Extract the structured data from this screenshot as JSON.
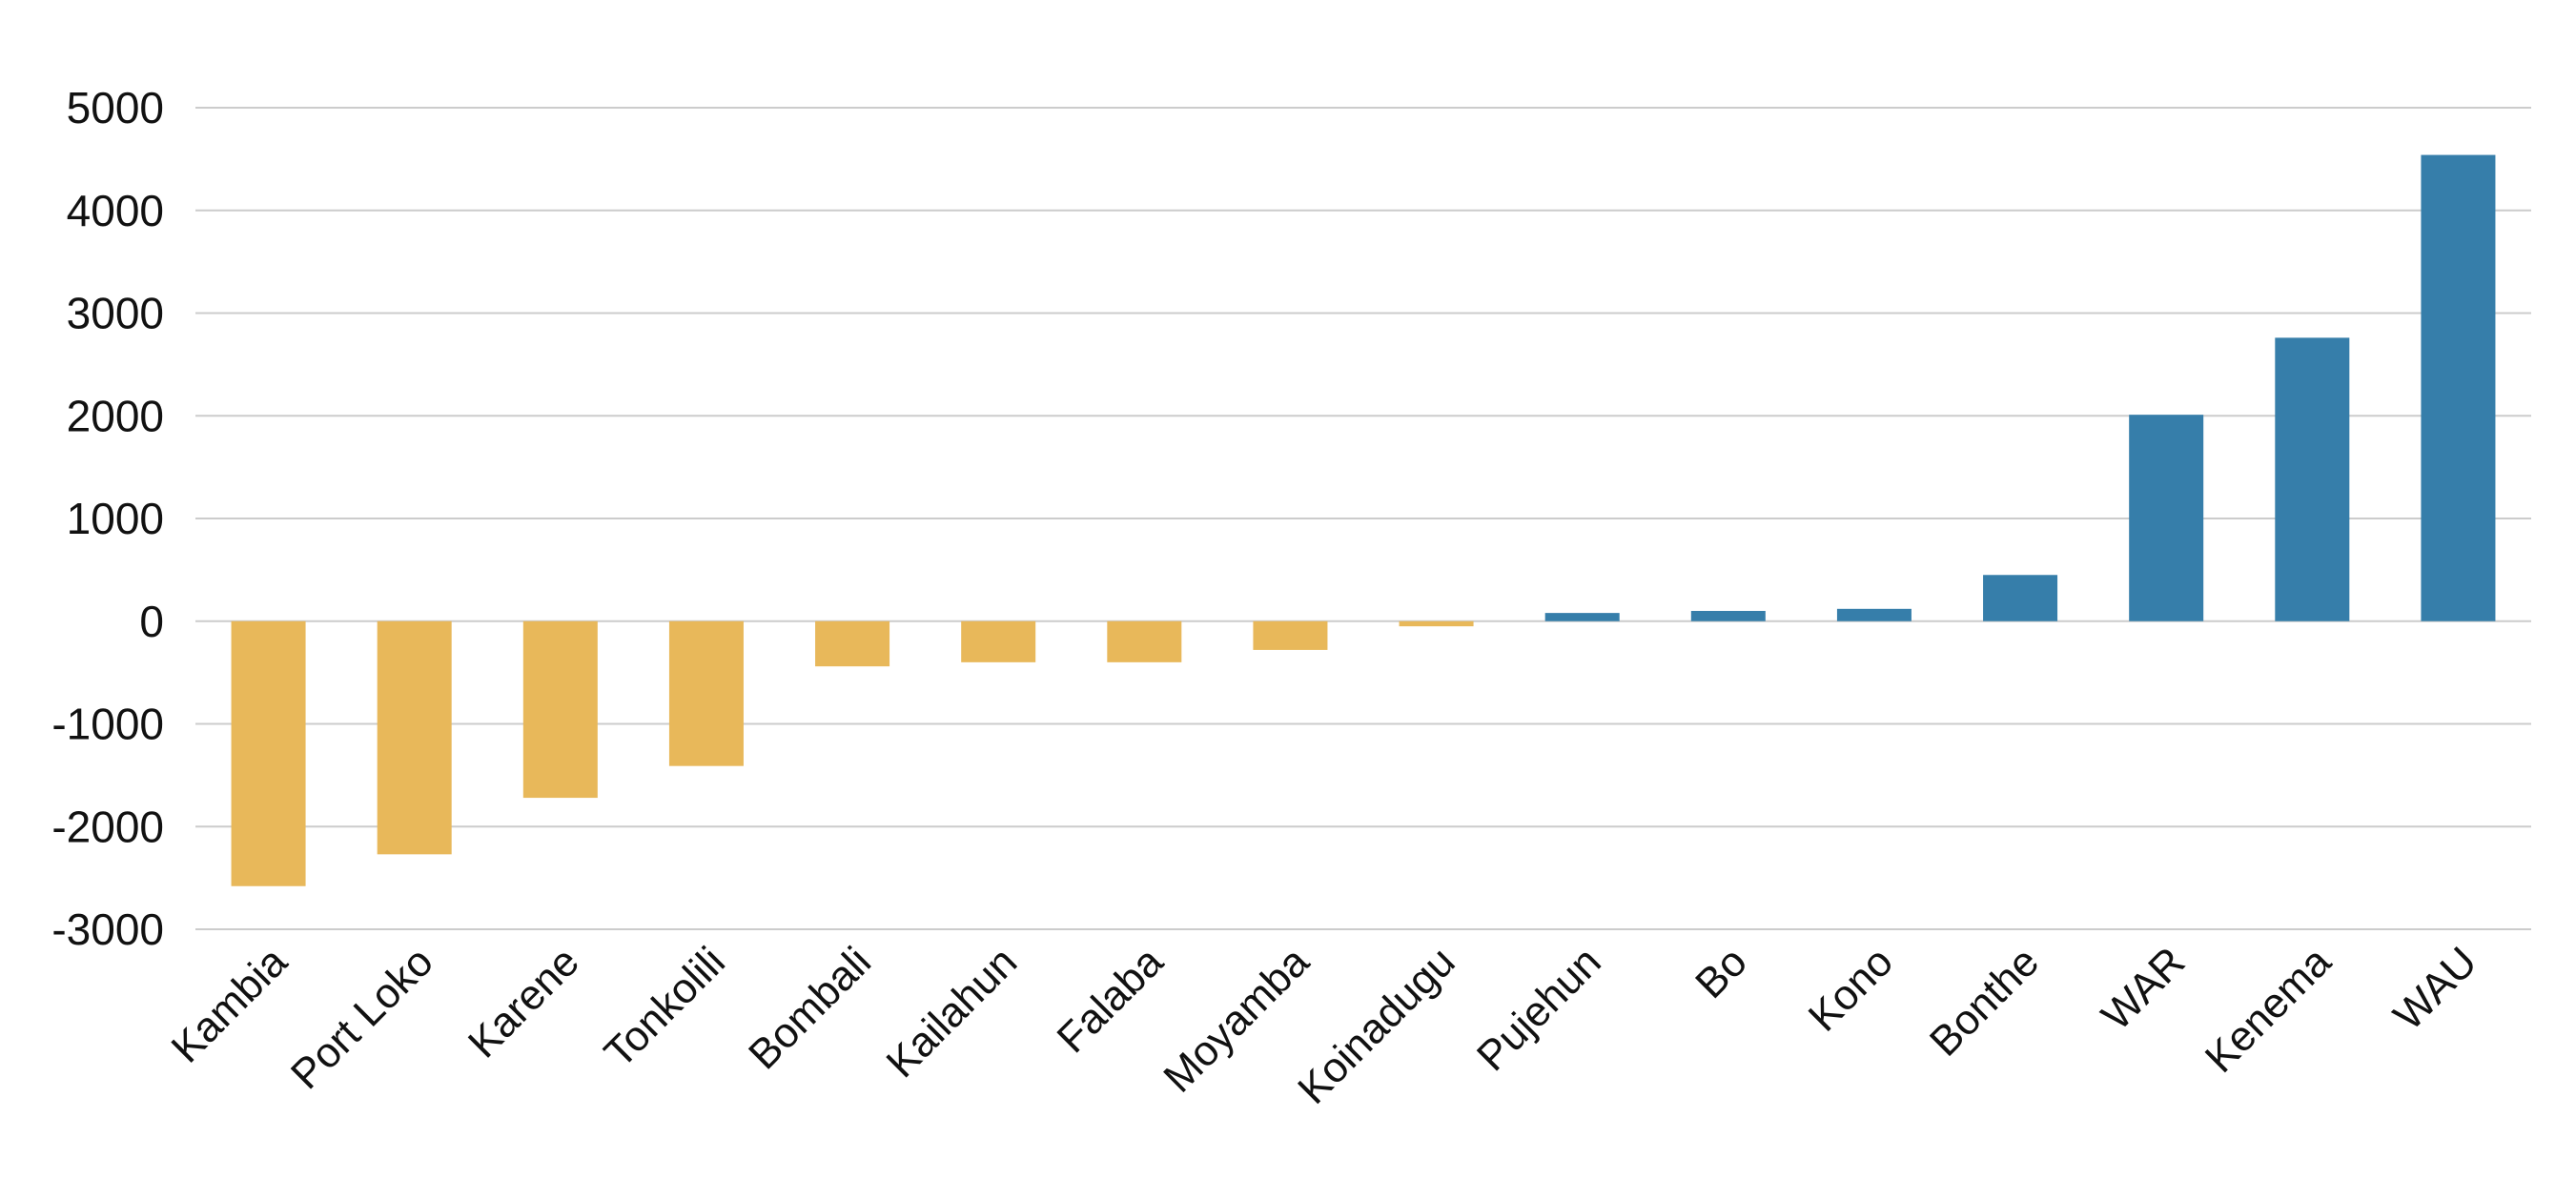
{
  "chart_data": {
    "type": "bar",
    "title": "",
    "xlabel": "",
    "ylabel": "",
    "ylim": [
      -3000,
      5000
    ],
    "yticks": [
      5000,
      4000,
      3000,
      2000,
      1000,
      0,
      -1000,
      -2000,
      -3000
    ],
    "grid": true,
    "legend": "none",
    "categories": [
      "Kambia",
      "Port Loko",
      "Karene",
      "Tonkolili",
      "Bombali",
      "Kailahun",
      "Falaba",
      "Moyamba",
      "Koinadugu",
      "Pujehun",
      "Bo",
      "Kono",
      "Bonthe",
      "WAR",
      "Kenema",
      "WAU"
    ],
    "values": [
      -2580,
      -2270,
      -1720,
      -1410,
      -440,
      -400,
      -400,
      -280,
      -50,
      80,
      100,
      120,
      450,
      2010,
      2760,
      4540
    ],
    "colors": {
      "negative": "#E8B85A",
      "positive": "#367EAA"
    }
  }
}
